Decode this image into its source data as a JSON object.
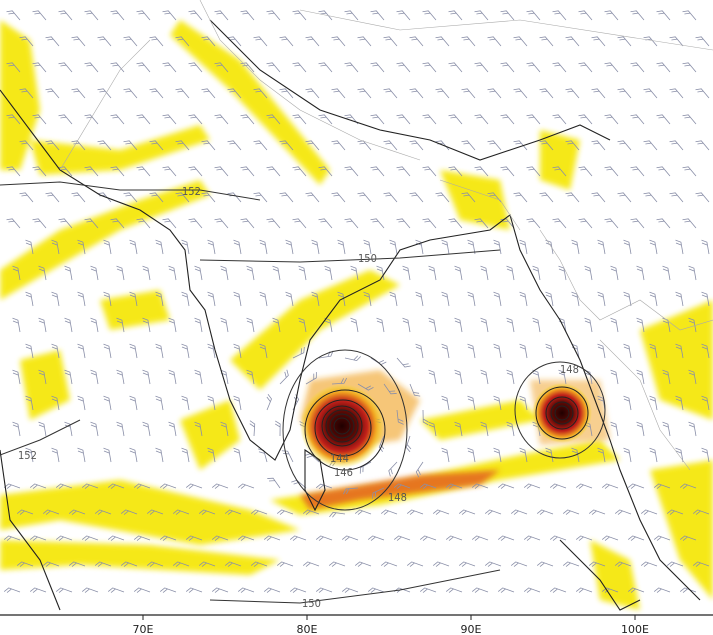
{
  "map": {
    "longitude_ticks": [
      {
        "label": "70E",
        "lon": 70
      },
      {
        "label": "80E",
        "lon": 80
      },
      {
        "label": "90E",
        "lon": 90
      },
      {
        "label": "100E",
        "lon": 100
      }
    ],
    "contour_labels": [
      {
        "text": "152",
        "id": "north-west"
      },
      {
        "text": "150",
        "id": "east-india"
      },
      {
        "text": "148",
        "id": "andaman"
      },
      {
        "text": "144",
        "id": "cyclone-inner"
      },
      {
        "text": "146",
        "id": "cyclone-mid"
      },
      {
        "text": "148",
        "id": "cyclone-outer"
      },
      {
        "text": "152",
        "id": "arabian-sea"
      },
      {
        "text": "150",
        "id": "south"
      }
    ],
    "colors": {
      "shading_low": "#f5e600",
      "shading_mid": "#f0a020",
      "shading_high": "#c0201a",
      "cyclone_core": "#3a0505",
      "coastline": "#222222",
      "borders": "#999999",
      "wind_barbs": "#8a8fa8"
    }
  }
}
